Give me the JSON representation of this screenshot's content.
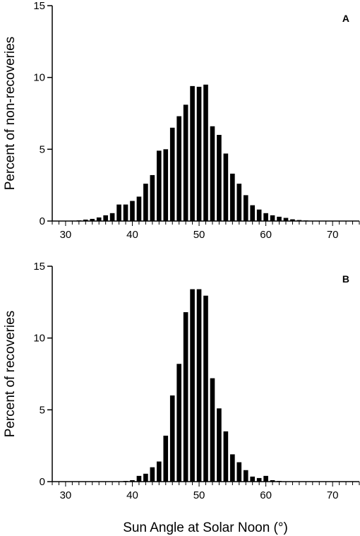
{
  "xlabel": "Sun Angle at Solar Noon (°)",
  "chart_data": [
    {
      "type": "bar",
      "panel_label": "A",
      "title": "",
      "ylabel": "Percent of non-recoveries",
      "xlabel": "",
      "xlim": [
        28,
        74
      ],
      "ylim": [
        0,
        15
      ],
      "xticks": [
        30,
        40,
        50,
        60,
        70
      ],
      "yticks": [
        0,
        5,
        10,
        15
      ],
      "bar_width": 0.7,
      "x": [
        30,
        31,
        32,
        33,
        34,
        35,
        36,
        37,
        38,
        39,
        40,
        41,
        42,
        43,
        44,
        45,
        46,
        47,
        48,
        49,
        50,
        51,
        52,
        53,
        54,
        55,
        56,
        57,
        58,
        59,
        60,
        61,
        62,
        63,
        64,
        65,
        66,
        67,
        68,
        69,
        70,
        71,
        72,
        73
      ],
      "values": [
        0.02,
        0.03,
        0.05,
        0.1,
        0.15,
        0.25,
        0.4,
        0.55,
        1.15,
        1.15,
        1.4,
        1.7,
        2.6,
        3.2,
        4.9,
        5.0,
        6.5,
        7.3,
        8.1,
        9.4,
        9.35,
        9.5,
        6.6,
        6.0,
        4.7,
        3.3,
        2.6,
        1.8,
        1.1,
        0.8,
        0.55,
        0.4,
        0.3,
        0.22,
        0.12,
        0.07,
        0.04,
        0.02,
        0.01,
        0.01,
        0.0,
        0.0,
        0.0,
        0.0
      ],
      "grid": false,
      "legend": "none"
    },
    {
      "type": "bar",
      "panel_label": "B",
      "title": "",
      "ylabel": "Percent of recoveries",
      "xlabel": "Sun Angle at Solar Noon (°)",
      "xlim": [
        28,
        74
      ],
      "ylim": [
        0,
        15
      ],
      "xticks": [
        30,
        40,
        50,
        60,
        70
      ],
      "yticks": [
        0,
        5,
        10,
        15
      ],
      "bar_width": 0.7,
      "x": [
        30,
        31,
        32,
        33,
        34,
        35,
        36,
        37,
        38,
        39,
        40,
        41,
        42,
        43,
        44,
        45,
        46,
        47,
        48,
        49,
        50,
        51,
        52,
        53,
        54,
        55,
        56,
        57,
        58,
        59,
        60,
        61,
        62,
        63,
        64,
        65,
        66,
        67,
        68,
        69,
        70,
        71,
        72,
        73
      ],
      "values": [
        0,
        0,
        0,
        0,
        0,
        0,
        0,
        0,
        0.02,
        0.05,
        0.1,
        0.4,
        0.55,
        1.0,
        1.4,
        3.2,
        6.0,
        8.2,
        11.8,
        13.4,
        13.4,
        12.95,
        7.2,
        5.1,
        3.5,
        1.9,
        1.35,
        0.8,
        0.35,
        0.25,
        0.4,
        0.1,
        0.05,
        0.02,
        0,
        0,
        0,
        0,
        0,
        0,
        0,
        0,
        0,
        0
      ],
      "grid": false,
      "legend": "none"
    }
  ]
}
